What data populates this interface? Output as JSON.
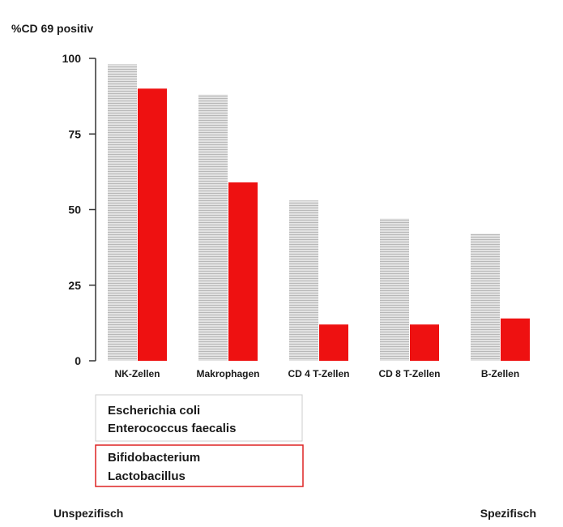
{
  "chart_data": {
    "type": "bar",
    "title": "",
    "ylabel": "%CD 69 positiv",
    "xlabel": "",
    "ylim": [
      0,
      100
    ],
    "yticks": [
      0,
      25,
      50,
      75,
      100
    ],
    "categories": [
      "NK-Zellen",
      "Makrophagen",
      "CD 4 T-Zellen",
      "CD 8 T-Zellen",
      "B-Zellen"
    ],
    "series": [
      {
        "name": "Escherichia coli\nEnterococcus faecalis",
        "color": "#d4d4d4",
        "pattern": "hatched-gray",
        "values": [
          98,
          88,
          53,
          47,
          42
        ]
      },
      {
        "name": "Bifidobacterium\nLactobacillus",
        "color": "#ee1111",
        "values": [
          90,
          59,
          12,
          12,
          14
        ]
      }
    ],
    "legend": {
      "position": "bottom-left",
      "entries": [
        {
          "lines": [
            "Escherichia coli",
            "Enterococcus faecalis"
          ],
          "border_color": "#cccccc"
        },
        {
          "lines": [
            "Bifidobacterium",
            "Lactobacillus"
          ],
          "border_color": "#dd2222"
        }
      ]
    },
    "grid": false
  },
  "footer": {
    "left_label": "Unspezifisch",
    "right_label": "Spezifisch"
  }
}
